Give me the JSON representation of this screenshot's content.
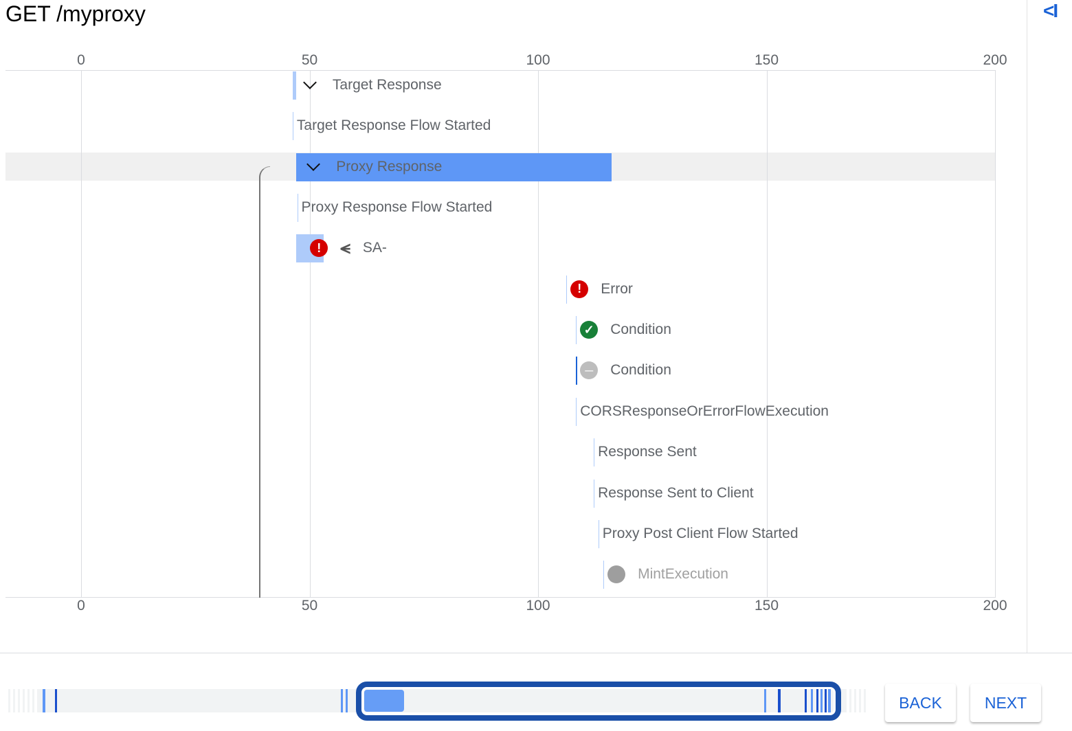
{
  "header": {
    "title": "GET /myproxy",
    "collapse_icon": "collapse-panel-icon",
    "collapse_label": "<I"
  },
  "axis": {
    "ticks": [
      0,
      50,
      100,
      150,
      200
    ],
    "range": [
      0,
      200
    ]
  },
  "rows": [
    {
      "label": "Target Response",
      "start": 46.3,
      "duration": 0.8,
      "kind": "bar",
      "expand": true,
      "color": "#aecbfa"
    },
    {
      "label": "Target Response Flow Started",
      "start": 46.3,
      "duration": 0,
      "kind": "line"
    },
    {
      "label": "Proxy Response",
      "start": 47.1,
      "duration": 69,
      "kind": "bar",
      "expand": true,
      "color": "#5e97f6",
      "selected": true
    },
    {
      "label": "Proxy Response Flow Started",
      "start": 47.3,
      "duration": 0,
      "kind": "line"
    },
    {
      "label": "SA-",
      "start": 47.1,
      "duration": 6,
      "kind": "bar",
      "color": "#aecbfa",
      "status": "error",
      "icon2": "shared-flow-icon"
    },
    {
      "label": "Error",
      "start": 106.2,
      "duration": 0,
      "kind": "line",
      "status": "error"
    },
    {
      "label": "Condition",
      "start": 108.3,
      "duration": 0,
      "kind": "line",
      "status": "true"
    },
    {
      "label": "Condition",
      "start": 108.3,
      "duration": 0,
      "kind": "line",
      "status": "false",
      "dark": true
    },
    {
      "label": "CORSResponseOrErrorFlowExecution",
      "start": 108.3,
      "duration": 0,
      "kind": "line"
    },
    {
      "label": "Response Sent",
      "start": 112.2,
      "duration": 0,
      "kind": "line"
    },
    {
      "label": "Response Sent to Client",
      "start": 112.2,
      "duration": 0,
      "kind": "line"
    },
    {
      "label": "Proxy Post Client Flow Started",
      "start": 113.2,
      "duration": 0,
      "kind": "line"
    },
    {
      "label": "MintExecution",
      "start": 114.3,
      "duration": 0,
      "kind": "line",
      "status": "skipped",
      "muted": true
    }
  ],
  "colors": {
    "error": "#d50000",
    "true": "#188038",
    "false": "#bdbdbd",
    "skipped": "#9e9e9e",
    "accent": "#1a62d6",
    "selection": "#1a4fa8"
  },
  "footer": {
    "back_label": "BACK",
    "next_label": "NEXT"
  }
}
